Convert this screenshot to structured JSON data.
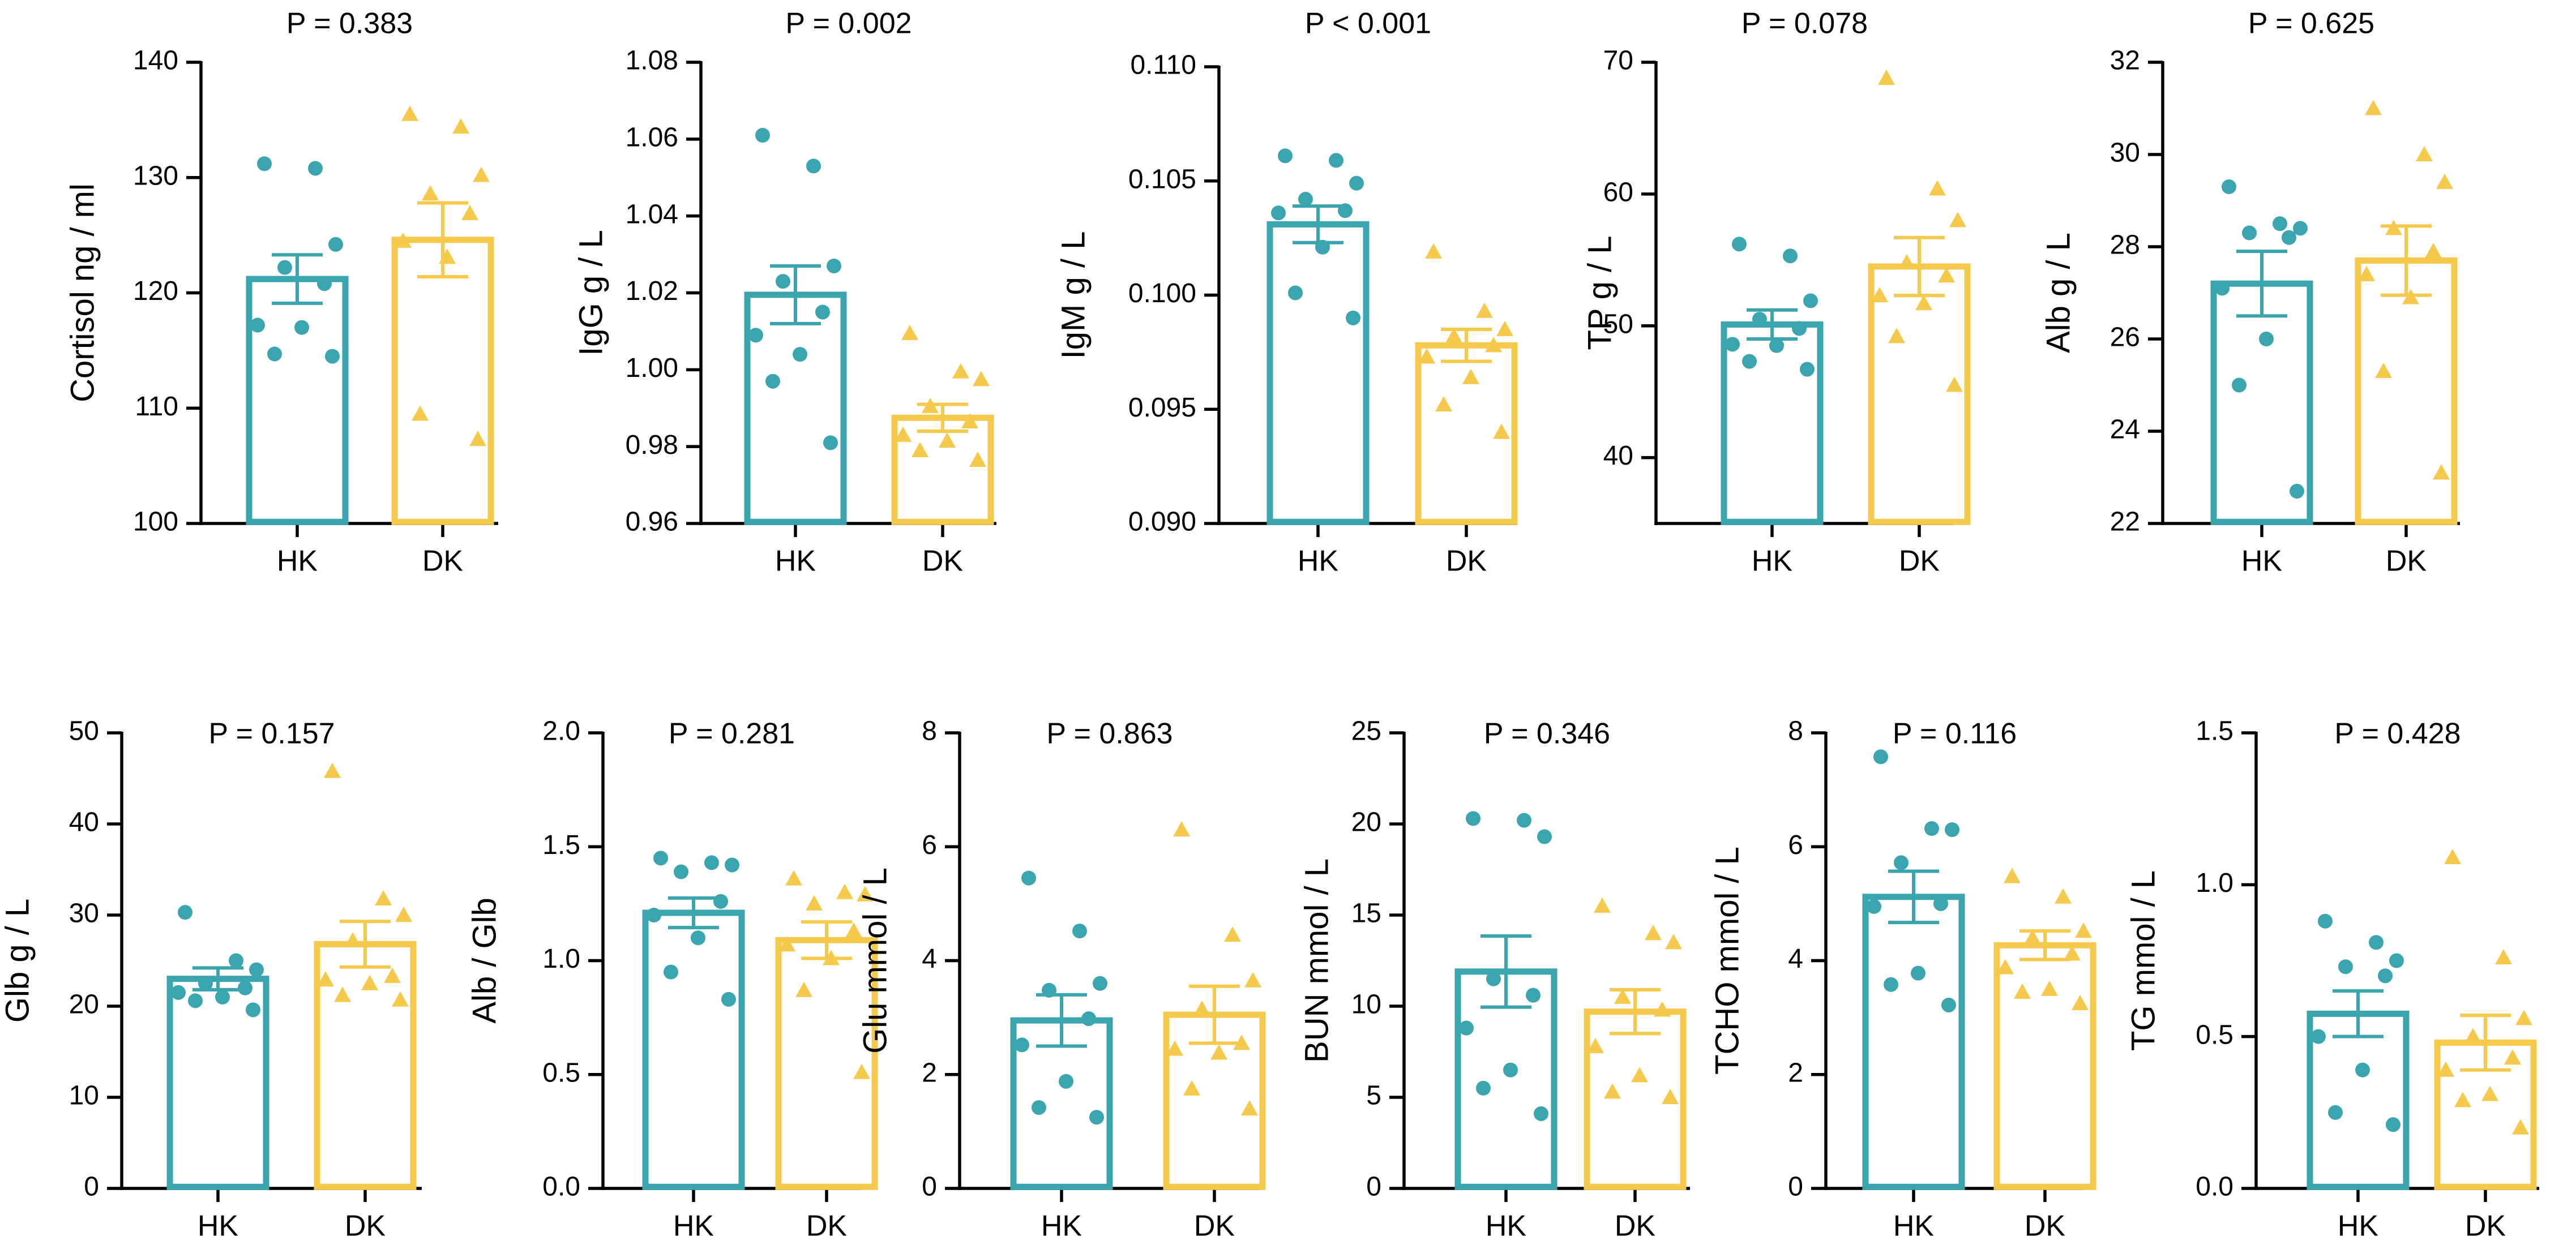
{
  "figure": {
    "groups": [
      "HK",
      "DK"
    ],
    "colors": {
      "HK": "#3aa5ae",
      "DK": "#f5c94c",
      "axis": "#000000"
    }
  },
  "chart_data": [
    {
      "type": "bar",
      "title": "P = 0.383",
      "ylabel": "Cortisol ng / ml",
      "categories": [
        "HK",
        "DK"
      ],
      "ylim": [
        100,
        140
      ],
      "yticks": [
        100,
        110,
        120,
        130,
        140
      ],
      "tick_labels": [
        "100",
        "110",
        "120",
        "130",
        "140"
      ],
      "means": [
        121.2,
        124.6
      ],
      "sem": [
        2.1,
        3.2
      ],
      "points": [
        [
          131.2,
          130.8,
          124.2,
          122.2,
          120.8,
          117.2,
          117.0,
          114.7,
          114.5
        ],
        [
          135.5,
          134.4,
          130.2,
          128.6,
          126.9,
          124.5,
          123.1,
          109.5,
          107.3
        ]
      ]
    },
    {
      "type": "bar",
      "title": "P = 0.002",
      "ylabel": "IgG g / L",
      "categories": [
        "HK",
        "DK"
      ],
      "ylim": [
        0.96,
        1.08
      ],
      "yticks": [
        0.96,
        0.98,
        1.0,
        1.02,
        1.04,
        1.06,
        1.08
      ],
      "tick_labels": [
        "0.96",
        "0.98",
        "1.00",
        "1.02",
        "1.04",
        "1.06",
        "1.08"
      ],
      "means": [
        1.0195,
        0.9875
      ],
      "sem": [
        0.0075,
        0.0035
      ],
      "points": [
        [
          1.061,
          1.053,
          1.027,
          1.023,
          1.015,
          1.009,
          1.004,
          0.997,
          0.981
        ],
        [
          1.0095,
          0.9995,
          0.9975,
          0.9905,
          0.9865,
          0.983,
          0.9815,
          0.979,
          0.9765
        ]
      ]
    },
    {
      "type": "bar",
      "title": "P < 0.001",
      "ylabel": "IgM g / L",
      "categories": [
        "HK",
        "DK"
      ],
      "ylim": [
        0.09,
        0.11
      ],
      "yticks": [
        0.09,
        0.095,
        0.1,
        0.105,
        0.11
      ],
      "tick_labels": [
        "0.090",
        "0.095",
        "0.100",
        "0.105",
        "0.110"
      ],
      "means": [
        0.1031,
        0.0978
      ],
      "sem": [
        0.0008,
        0.0007
      ],
      "points": [
        [
          0.1061,
          0.1059,
          0.1049,
          0.1042,
          0.1037,
          0.1036,
          0.1021,
          0.1001,
          0.099
        ],
        [
          0.1019,
          0.0993,
          0.0985,
          0.0982,
          0.0978,
          0.0973,
          0.0964,
          0.0952,
          0.094
        ]
      ]
    },
    {
      "type": "bar",
      "title": "P = 0.078",
      "ylabel": "TP g / L",
      "categories": [
        "HK",
        "DK"
      ],
      "ylim": [
        35,
        70
      ],
      "yticks": [
        40,
        50,
        60,
        70
      ],
      "tick_labels": [
        "40",
        "50",
        "60",
        "70"
      ],
      "means": [
        50.1,
        54.5
      ],
      "sem": [
        1.1,
        2.2
      ],
      "points": [
        [
          56.2,
          55.3,
          51.9,
          50.5,
          49.8,
          48.6,
          48.5,
          47.3,
          46.7
        ],
        [
          68.8,
          60.4,
          58.0,
          54.8,
          53.8,
          52.3,
          51.7,
          49.2,
          45.5
        ]
      ]
    },
    {
      "type": "bar",
      "title": "P = 0.625",
      "ylabel": "Alb g / L",
      "categories": [
        "HK",
        "DK"
      ],
      "ylim": [
        22,
        32
      ],
      "yticks": [
        22,
        24,
        26,
        28,
        30,
        32
      ],
      "tick_labels": [
        "22",
        "24",
        "26",
        "28",
        "30",
        "32"
      ],
      "means": [
        27.2,
        27.7
      ],
      "sem": [
        0.7,
        0.75
      ],
      "points": [
        [
          29.3,
          28.5,
          28.4,
          28.3,
          28.2,
          27.1,
          26.0,
          25.0,
          22.7
        ],
        [
          31.0,
          30.0,
          29.4,
          28.4,
          27.9,
          27.4,
          26.9,
          25.3,
          23.1
        ]
      ]
    },
    {
      "type": "bar",
      "title": "P = 0.157",
      "ylabel": "Glb g / L",
      "categories": [
        "HK",
        "DK"
      ],
      "ylim": [
        0,
        50
      ],
      "yticks": [
        0,
        10,
        20,
        30,
        40,
        50
      ],
      "tick_labels": [
        "0",
        "10",
        "20",
        "30",
        "40",
        "50"
      ],
      "means": [
        23.0,
        26.8
      ],
      "sem": [
        1.2,
        2.5
      ],
      "points": [
        [
          30.3,
          25.0,
          24.0,
          22.5,
          22.0,
          21.5,
          21.0,
          20.6,
          19.6
        ],
        [
          45.8,
          31.8,
          30.0,
          27.2,
          23.3,
          22.9,
          22.5,
          21.2,
          20.7
        ]
      ]
    },
    {
      "type": "bar",
      "title": "P = 0.281",
      "ylabel": "Alb / Glb",
      "categories": [
        "HK",
        "DK"
      ],
      "ylim": [
        0,
        2
      ],
      "yticks": [
        0,
        0.5,
        1,
        1.5,
        2
      ],
      "tick_labels": [
        "0.0",
        "0.5",
        "1.0",
        "1.5",
        "2.0"
      ],
      "means": [
        1.21,
        1.09
      ],
      "sem": [
        0.065,
        0.08
      ],
      "points": [
        [
          1.45,
          1.43,
          1.42,
          1.39,
          1.26,
          1.2,
          1.1,
          0.95,
          0.83
        ],
        [
          1.36,
          1.3,
          1.29,
          1.25,
          1.13,
          1.07,
          1.01,
          0.87,
          0.51
        ]
      ]
    },
    {
      "type": "bar",
      "title": "P = 0.863",
      "ylabel": "Glu mmol / L",
      "categories": [
        "HK",
        "DK"
      ],
      "ylim": [
        0,
        8
      ],
      "yticks": [
        0,
        2,
        4,
        6,
        8
      ],
      "tick_labels": [
        "0",
        "2",
        "4",
        "6",
        "8"
      ],
      "means": [
        2.95,
        3.05
      ],
      "sem": [
        0.45,
        0.5
      ],
      "points": [
        [
          5.45,
          4.52,
          3.6,
          3.48,
          2.98,
          2.52,
          1.88,
          1.42,
          1.25
        ],
        [
          6.3,
          4.45,
          3.65,
          3.15,
          2.55,
          2.45,
          2.38,
          1.75,
          1.4
        ]
      ]
    },
    {
      "type": "bar",
      "title": "P = 0.346",
      "ylabel": "BUN mmol / L",
      "categories": [
        "HK",
        "DK"
      ],
      "ylim": [
        0,
        25
      ],
      "yticks": [
        0,
        5,
        10,
        15,
        20,
        25
      ],
      "tick_labels": [
        "0",
        "5",
        "10",
        "15",
        "20",
        "25"
      ],
      "means": [
        11.9,
        9.7
      ],
      "sem": [
        1.95,
        1.2
      ],
      "points": [
        [
          20.3,
          20.2,
          19.3,
          11.5,
          10.6,
          8.8,
          6.5,
          5.5,
          4.1
        ],
        [
          15.5,
          14.0,
          13.5,
          10.5,
          9.8,
          7.8,
          6.2,
          5.3,
          5.0
        ]
      ]
    },
    {
      "type": "bar",
      "title": "P = 0.116",
      "ylabel": "TCHO mmol / L",
      "categories": [
        "HK",
        "DK"
      ],
      "ylim": [
        0,
        8
      ],
      "yticks": [
        0,
        2,
        4,
        6,
        8
      ],
      "tick_labels": [
        "0",
        "2",
        "4",
        "6",
        "8"
      ],
      "means": [
        5.12,
        4.27
      ],
      "sem": [
        0.45,
        0.25
      ],
      "points": [
        [
          7.58,
          6.32,
          6.3,
          5.72,
          5.0,
          4.95,
          3.78,
          3.58,
          3.22
        ],
        [
          5.48,
          5.12,
          4.52,
          4.4,
          4.12,
          3.88,
          3.5,
          3.45,
          3.25
        ]
      ]
    },
    {
      "type": "bar",
      "title": "P = 0.428",
      "ylabel": "TG mmol / L",
      "categories": [
        "HK",
        "DK"
      ],
      "ylim": [
        0,
        1.5
      ],
      "yticks": [
        0,
        0.5,
        1,
        1.5
      ],
      "tick_labels": [
        "0.0",
        "0.5",
        "1.0",
        "1.5"
      ],
      "means": [
        0.575,
        0.48
      ],
      "sem": [
        0.075,
        0.09
      ],
      "points": [
        [
          0.88,
          0.81,
          0.75,
          0.73,
          0.7,
          0.5,
          0.39,
          0.25,
          0.21
        ],
        [
          1.09,
          0.76,
          0.56,
          0.5,
          0.43,
          0.39,
          0.31,
          0.29,
          0.2
        ]
      ]
    }
  ]
}
